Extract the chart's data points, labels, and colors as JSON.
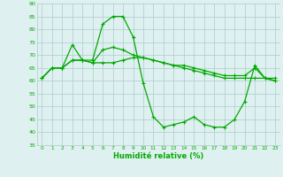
{
  "x": [
    0,
    1,
    2,
    3,
    4,
    5,
    6,
    7,
    8,
    9,
    10,
    11,
    12,
    13,
    14,
    15,
    16,
    17,
    18,
    19,
    20,
    21,
    22,
    23
  ],
  "line1": [
    61,
    65,
    65,
    68,
    68,
    67,
    67,
    67,
    68,
    69,
    69,
    68,
    67,
    66,
    66,
    65,
    64,
    63,
    62,
    62,
    62,
    65,
    61,
    61
  ],
  "line2": [
    61,
    65,
    65,
    68,
    68,
    67,
    72,
    73,
    72,
    70,
    69,
    68,
    67,
    66,
    65,
    64,
    63,
    62,
    61,
    61,
    61,
    61,
    61,
    60
  ],
  "line3": [
    61,
    65,
    65,
    74,
    68,
    68,
    82,
    85,
    85,
    77,
    59,
    46,
    42,
    43,
    44,
    46,
    43,
    42,
    42,
    45,
    52,
    66,
    61,
    60
  ],
  "bg_color": "#dff0f0",
  "grid_color": "#aacccc",
  "line_color": "#00aa00",
  "xlabel": "Humidité relative (%)",
  "ylim": [
    35,
    90
  ],
  "xlim": [
    -0.5,
    23.5
  ],
  "yticks": [
    35,
    40,
    45,
    50,
    55,
    60,
    65,
    70,
    75,
    80,
    85,
    90
  ],
  "xticks": [
    0,
    1,
    2,
    3,
    4,
    5,
    6,
    7,
    8,
    9,
    10,
    11,
    12,
    13,
    14,
    15,
    16,
    17,
    18,
    19,
    20,
    21,
    22,
    23
  ]
}
